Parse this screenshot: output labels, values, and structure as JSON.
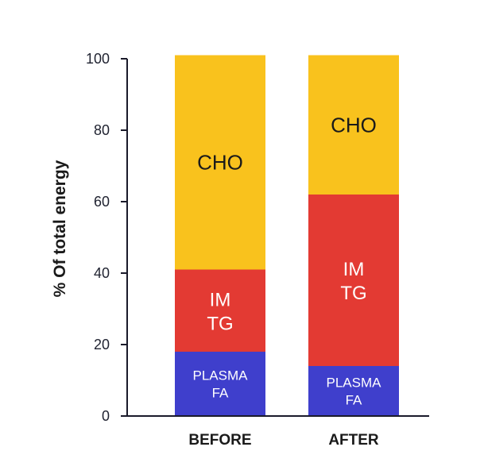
{
  "chart_data": {
    "type": "bar",
    "stacked": true,
    "title": "",
    "xlabel": "",
    "ylabel": "% Of total energy",
    "ylim": [
      0,
      100
    ],
    "yticks": [
      "0",
      "20",
      "40",
      "60",
      "80",
      "100"
    ],
    "grid": false,
    "categories": [
      "BEFORE",
      "AFTER"
    ],
    "series": [
      {
        "name": "PLASMA FA",
        "label_lines": [
          "PLASMA",
          "FA"
        ],
        "color": "#3f3fcc",
        "values": [
          18,
          14
        ]
      },
      {
        "name": "IM TG",
        "label_lines": [
          "IM",
          "TG"
        ],
        "color": "#e33a33",
        "values": [
          23,
          48
        ]
      },
      {
        "name": "CHO",
        "label_lines": [
          "CHO"
        ],
        "color": "#f9c21d",
        "values": [
          60,
          39
        ]
      }
    ]
  }
}
